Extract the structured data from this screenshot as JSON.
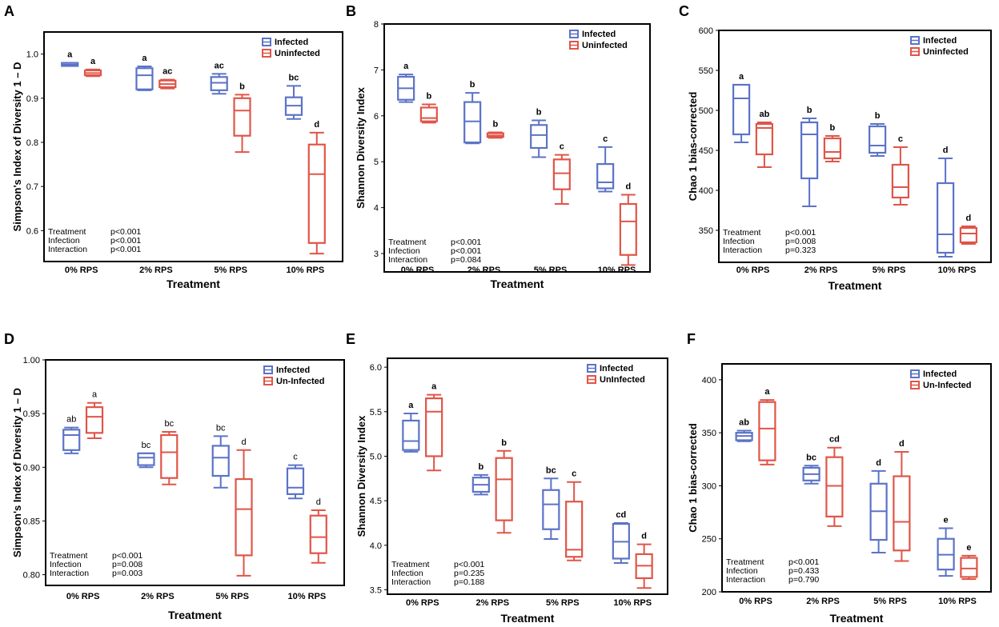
{
  "colors": {
    "infected": "#5b73c7",
    "uninfected": "#e05548"
  },
  "chart_data": [
    {
      "panel": "A",
      "type": "box",
      "ylabel": "Simpson's Index of Diversity 1 – D",
      "xlabel": "Treatment",
      "ylim": [
        0.53,
        1.05
      ],
      "yticks": [
        0.6,
        0.7,
        0.8,
        0.9,
        1.0
      ],
      "ytick_labels": [
        "0.6",
        "0.7",
        "0.8",
        "0.9",
        "1.0"
      ],
      "categories": [
        "0% RPS",
        "2% RPS",
        "5% RPS",
        "10% RPS"
      ],
      "legend": [
        "Infected",
        "Uninfected"
      ],
      "sig_bold": true,
      "series": [
        {
          "name": "Infected",
          "boxes": [
            {
              "min": 0.973,
              "q1": 0.973,
              "median": 0.976,
              "q3": 0.98,
              "max": 0.98,
              "label": "a"
            },
            {
              "min": 0.918,
              "q1": 0.92,
              "median": 0.952,
              "q3": 0.968,
              "max": 0.972,
              "label": "a"
            },
            {
              "min": 0.91,
              "q1": 0.918,
              "median": 0.935,
              "q3": 0.948,
              "max": 0.955,
              "label": "ac"
            },
            {
              "min": 0.853,
              "q1": 0.862,
              "median": 0.883,
              "q3": 0.902,
              "max": 0.928,
              "label": "bc"
            }
          ]
        },
        {
          "name": "Uninfected",
          "boxes": [
            {
              "min": 0.95,
              "q1": 0.952,
              "median": 0.957,
              "q3": 0.963,
              "max": 0.965,
              "label": "a"
            },
            {
              "min": 0.922,
              "q1": 0.925,
              "median": 0.932,
              "q3": 0.94,
              "max": 0.942,
              "label": "ac"
            },
            {
              "min": 0.778,
              "q1": 0.815,
              "median": 0.872,
              "q3": 0.9,
              "max": 0.908,
              "label": "b"
            },
            {
              "min": 0.548,
              "q1": 0.572,
              "median": 0.728,
              "q3": 0.795,
              "max": 0.822,
              "label": "d"
            }
          ]
        }
      ],
      "stats": [
        {
          "term": "Treatment",
          "p": "p<0.001"
        },
        {
          "term": "Infection",
          "p": "p<0.001"
        },
        {
          "term": "Interaction",
          "p": "p<0.001"
        }
      ]
    },
    {
      "panel": "B",
      "type": "box",
      "ylabel": "Shannon Diversity Index",
      "xlabel": "Treatment",
      "ylim": [
        2.6,
        8.0
      ],
      "yticks": [
        3,
        4,
        5,
        6,
        7,
        8
      ],
      "ytick_labels": [
        "3",
        "4",
        "5",
        "6",
        "7",
        "8"
      ],
      "categories": [
        "0% RPS",
        "2% RPS",
        "5% RPS",
        "10% RPS"
      ],
      "legend": [
        "Infected",
        "Uninfected"
      ],
      "sig_bold": true,
      "series": [
        {
          "name": "Infected",
          "boxes": [
            {
              "min": 6.3,
              "q1": 6.35,
              "median": 6.6,
              "q3": 6.85,
              "max": 6.9,
              "label": "a"
            },
            {
              "min": 5.4,
              "q1": 5.42,
              "median": 5.88,
              "q3": 6.3,
              "max": 6.5,
              "label": "b"
            },
            {
              "min": 5.1,
              "q1": 5.3,
              "median": 5.58,
              "q3": 5.8,
              "max": 5.9,
              "label": "b"
            },
            {
              "min": 4.35,
              "q1": 4.42,
              "median": 4.55,
              "q3": 4.95,
              "max": 5.32,
              "label": "c"
            }
          ]
        },
        {
          "name": "Uninfected",
          "boxes": [
            {
              "min": 5.85,
              "q1": 5.88,
              "median": 5.95,
              "q3": 6.18,
              "max": 6.25,
              "label": "b"
            },
            {
              "min": 5.52,
              "q1": 5.54,
              "median": 5.57,
              "q3": 5.62,
              "max": 5.64,
              "label": "b"
            },
            {
              "min": 4.08,
              "q1": 4.4,
              "median": 4.75,
              "q3": 5.05,
              "max": 5.15,
              "label": "c"
            },
            {
              "min": 2.75,
              "q1": 2.97,
              "median": 3.7,
              "q3": 4.08,
              "max": 4.28,
              "label": "d"
            }
          ]
        }
      ],
      "stats": [
        {
          "term": "Treatment",
          "p": "p<0.001"
        },
        {
          "term": "Infection",
          "p": "p<0.001"
        },
        {
          "term": "Interaction",
          "p": "p=0.084"
        }
      ]
    },
    {
      "panel": "C",
      "type": "box",
      "ylabel": "Chao 1 bias-corrected",
      "xlabel": "Treatment",
      "ylim": [
        310,
        600
      ],
      "yticks": [
        350,
        400,
        450,
        500,
        550,
        600
      ],
      "ytick_labels": [
        "350",
        "400",
        "450",
        "500",
        "550",
        "600"
      ],
      "categories": [
        "0% RPS",
        "2% RPS",
        "5% RPS",
        "10% RPS"
      ],
      "legend": [
        "Infected",
        "Uninfected"
      ],
      "sig_bold": true,
      "series": [
        {
          "name": "Infected",
          "boxes": [
            {
              "min": 460,
              "q1": 470,
              "median": 515,
              "q3": 532,
              "max": 532,
              "label": "a"
            },
            {
              "min": 380,
              "q1": 415,
              "median": 470,
              "q3": 485,
              "max": 490,
              "label": "b"
            },
            {
              "min": 443,
              "q1": 447,
              "median": 456,
              "q3": 480,
              "max": 483,
              "label": "b"
            },
            {
              "min": 317,
              "q1": 322,
              "median": 345,
              "q3": 409,
              "max": 440,
              "label": "d"
            }
          ]
        },
        {
          "name": "Uninfected",
          "boxes": [
            {
              "min": 429,
              "q1": 445,
              "median": 478,
              "q3": 483,
              "max": 485,
              "label": "ab"
            },
            {
              "min": 436,
              "q1": 440,
              "median": 448,
              "q3": 465,
              "max": 468,
              "label": "b"
            },
            {
              "min": 382,
              "q1": 391,
              "median": 404,
              "q3": 432,
              "max": 454,
              "label": "c"
            },
            {
              "min": 333,
              "q1": 335,
              "median": 346,
              "q3": 353,
              "max": 355,
              "label": "d"
            }
          ]
        }
      ],
      "stats": [
        {
          "term": "Treatment",
          "p": "p<0.001"
        },
        {
          "term": "Infection",
          "p": "p=0.008"
        },
        {
          "term": "Interaction",
          "p": "p=0.323"
        }
      ]
    },
    {
      "panel": "D",
      "type": "box",
      "ylabel": "Simpson's Index of Diversity 1 – D",
      "xlabel": "Treatment",
      "ylim": [
        0.79,
        1.0
      ],
      "yticks": [
        0.8,
        0.85,
        0.9,
        0.95,
        1.0
      ],
      "ytick_labels": [
        "0.80",
        "0.85",
        "0.90",
        "0.95",
        "1.00"
      ],
      "categories": [
        "0% RPS",
        "2% RPS",
        "5% RPS",
        "10% RPS"
      ],
      "legend": [
        "Infected",
        "Un-Infected"
      ],
      "sig_bold": false,
      "series": [
        {
          "name": "Infected",
          "boxes": [
            {
              "min": 0.913,
              "q1": 0.916,
              "median": 0.93,
              "q3": 0.935,
              "max": 0.937,
              "label": "ab"
            },
            {
              "min": 0.9,
              "q1": 0.902,
              "median": 0.909,
              "q3": 0.913,
              "max": 0.913,
              "label": "bc"
            },
            {
              "min": 0.881,
              "q1": 0.892,
              "median": 0.909,
              "q3": 0.92,
              "max": 0.929,
              "label": "bc"
            },
            {
              "min": 0.871,
              "q1": 0.875,
              "median": 0.881,
              "q3": 0.899,
              "max": 0.902,
              "label": "c"
            }
          ]
        },
        {
          "name": "Un-Infected",
          "boxes": [
            {
              "min": 0.927,
              "q1": 0.932,
              "median": 0.947,
              "q3": 0.956,
              "max": 0.96,
              "label": "a"
            },
            {
              "min": 0.884,
              "q1": 0.89,
              "median": 0.914,
              "q3": 0.93,
              "max": 0.933,
              "label": "bc"
            },
            {
              "min": 0.799,
              "q1": 0.818,
              "median": 0.861,
              "q3": 0.889,
              "max": 0.916,
              "label": "d"
            },
            {
              "min": 0.811,
              "q1": 0.82,
              "median": 0.835,
              "q3": 0.855,
              "max": 0.86,
              "label": "d"
            }
          ]
        }
      ],
      "stats": [
        {
          "term": "Treatment",
          "p": "p<0.001"
        },
        {
          "term": "Infection",
          "p": "p=0.008"
        },
        {
          "term": "Interaction",
          "p": "p=0.003"
        }
      ]
    },
    {
      "panel": "E",
      "type": "box",
      "ylabel": "Shannon Diversity Index",
      "xlabel": "Treatment",
      "ylim": [
        3.45,
        6.1
      ],
      "yticks": [
        3.5,
        4.0,
        4.5,
        5.0,
        5.5,
        6.0
      ],
      "ytick_labels": [
        "3.5",
        "4.0",
        "4.5",
        "5.0",
        "5.5",
        "6.0"
      ],
      "categories": [
        "0% RPS",
        "2% RPS",
        "5% RPS",
        "10% RPS"
      ],
      "legend": [
        "Infected",
        "UnInfected"
      ],
      "sig_bold": true,
      "series": [
        {
          "name": "Infected",
          "boxes": [
            {
              "min": 5.05,
              "q1": 5.07,
              "median": 5.17,
              "q3": 5.4,
              "max": 5.48,
              "label": "a"
            },
            {
              "min": 4.57,
              "q1": 4.6,
              "median": 4.68,
              "q3": 4.76,
              "max": 4.79,
              "label": "b"
            },
            {
              "min": 4.07,
              "q1": 4.18,
              "median": 4.46,
              "q3": 4.62,
              "max": 4.75,
              "label": "bc"
            },
            {
              "min": 3.8,
              "q1": 3.85,
              "median": 4.04,
              "q3": 4.24,
              "max": 4.25,
              "label": "cd"
            }
          ]
        },
        {
          "name": "UnInfected",
          "boxes": [
            {
              "min": 4.84,
              "q1": 5.0,
              "median": 5.5,
              "q3": 5.65,
              "max": 5.69,
              "label": "a"
            },
            {
              "min": 4.14,
              "q1": 4.28,
              "median": 4.74,
              "q3": 4.98,
              "max": 5.06,
              "label": "b"
            },
            {
              "min": 3.83,
              "q1": 3.87,
              "median": 3.95,
              "q3": 4.49,
              "max": 4.71,
              "label": "c"
            },
            {
              "min": 3.52,
              "q1": 3.63,
              "median": 3.77,
              "q3": 3.9,
              "max": 4.01,
              "label": "d"
            }
          ]
        }
      ],
      "stats": [
        {
          "term": "Treatment",
          "p": "p<0.001"
        },
        {
          "term": "Infection",
          "p": "p=0.235"
        },
        {
          "term": "Interaction",
          "p": "p=0.188"
        }
      ]
    },
    {
      "panel": "F",
      "type": "box",
      "ylabel": "Chao 1 bias-corrected",
      "xlabel": "Treatment",
      "ylim": [
        200,
        415
      ],
      "yticks": [
        200,
        250,
        300,
        350,
        400
      ],
      "ytick_labels": [
        "200",
        "250",
        "300",
        "350",
        "400"
      ],
      "categories": [
        "0% RPS",
        "2% RPS",
        "5% RPS",
        "10% RPS"
      ],
      "legend": [
        "Infected",
        "Un-Infected"
      ],
      "sig_bold": true,
      "series": [
        {
          "name": "Infected",
          "boxes": [
            {
              "min": 342,
              "q1": 343,
              "median": 347,
              "q3": 350,
              "max": 352,
              "label": "ab"
            },
            {
              "min": 302,
              "q1": 305,
              "median": 311,
              "q3": 317,
              "max": 319,
              "label": "bc"
            },
            {
              "min": 237,
              "q1": 249,
              "median": 276,
              "q3": 302,
              "max": 314,
              "label": "d"
            },
            {
              "min": 215,
              "q1": 221,
              "median": 235,
              "q3": 250,
              "max": 260,
              "label": "e"
            }
          ]
        },
        {
          "name": "Un-Infected",
          "boxes": [
            {
              "min": 320,
              "q1": 324,
              "median": 354,
              "q3": 379,
              "max": 381,
              "label": "a"
            },
            {
              "min": 262,
              "q1": 271,
              "median": 300,
              "q3": 327,
              "max": 336,
              "label": "cd"
            },
            {
              "min": 229,
              "q1": 239,
              "median": 266,
              "q3": 309,
              "max": 332,
              "label": "d"
            },
            {
              "min": 212,
              "q1": 214,
              "median": 222,
              "q3": 232,
              "max": 234,
              "label": "e"
            }
          ]
        }
      ],
      "stats": [
        {
          "term": "Treatment",
          "p": "p<0.001"
        },
        {
          "term": "Infection",
          "p": "p=0.433"
        },
        {
          "term": "Interaction",
          "p": "p=0.790"
        }
      ]
    }
  ]
}
